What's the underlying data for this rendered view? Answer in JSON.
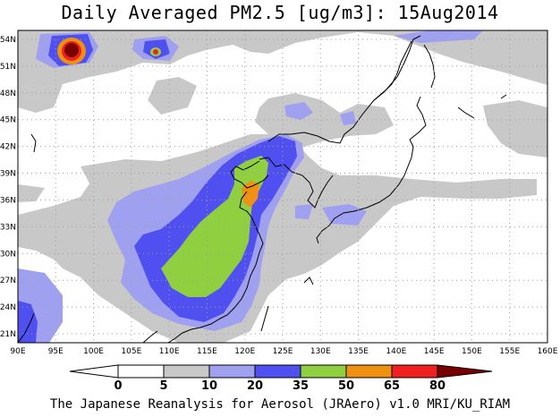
{
  "title": "Daily Averaged PM2.5 [ug/m3]: 15Aug2014",
  "caption": "The Japanese Reanalysis for Aerosol (JRAero) v1.0 MRI/KU_RIAM",
  "map": {
    "lon_range": [
      90,
      160
    ],
    "lat_range": [
      20,
      55
    ],
    "lon_ticks": [
      "90E",
      "95E",
      "100E",
      "105E",
      "110E",
      "115E",
      "120E",
      "125E",
      "130E",
      "135E",
      "140E",
      "145E",
      "150E",
      "155E",
      "160E"
    ],
    "lat_ticks": [
      "21N",
      "24N",
      "27N",
      "30N",
      "33N",
      "36N",
      "39N",
      "42N",
      "45N",
      "48N",
      "51N",
      "54N"
    ]
  },
  "colorbar": {
    "levels": [
      "0",
      "5",
      "10",
      "20",
      "35",
      "50",
      "65",
      "80"
    ],
    "colors": {
      "c0_5": "#ffffff",
      "c5_10": "#c8c8c8",
      "c10_20": "#a0a0f0",
      "c20_35": "#5050f0",
      "c35_50": "#90d040",
      "c50_65": "#f09010",
      "c65_80": "#f02020",
      "c80_plus": "#780000"
    }
  }
}
